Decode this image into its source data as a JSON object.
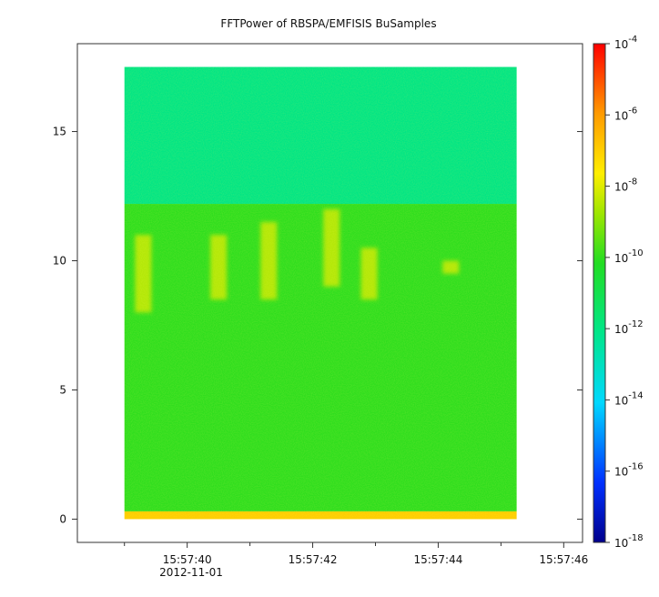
{
  "chart_data": {
    "type": "heatmap",
    "title": "FFTPower of RBSPA/EMFISIS  BuSamples",
    "x": {
      "ticks": [
        "15:57:40",
        "15:57:42",
        "15:57:44",
        "15:57:46"
      ],
      "date_label": "2012-11-01",
      "range": [
        "15:57:38.25",
        "15:57:46.3"
      ],
      "data_range": [
        "15:57:39.0",
        "15:57:45.25"
      ]
    },
    "y": {
      "ticks": [
        "0",
        "5",
        "10",
        "15"
      ],
      "range": [
        -0.9,
        18.4
      ],
      "data_range": [
        0,
        17.5
      ]
    },
    "colorbar": {
      "scale": "log",
      "range": [
        1e-18,
        0.0001
      ],
      "tick_bases": [
        "10",
        "10",
        "10",
        "10",
        "10",
        "10",
        "10",
        "10"
      ],
      "tick_exponents": [
        "-4",
        "-6",
        "-8",
        "-10",
        "-12",
        "-14",
        "-16",
        "-18"
      ],
      "colors": [
        "#0000a0",
        "#0040ff",
        "#00d0ff",
        "#00e890",
        "#10e040",
        "#90e000",
        "#ffee00",
        "#ff9000",
        "#ff0000"
      ]
    },
    "regions": [
      {
        "y_range": [
          12.2,
          17.5
        ],
        "level": 1e-12,
        "desc": "cyan-green band"
      },
      {
        "y_range": [
          0.3,
          12.2
        ],
        "level": 1e-10,
        "desc": "green band"
      },
      {
        "y_range": [
          0,
          0.3
        ],
        "level": 1e-07,
        "desc": "orange/red low-frequency line"
      }
    ],
    "bursts": [
      {
        "t": "15:57:39.3",
        "y_range": [
          8,
          11
        ],
        "level": 1e-08
      },
      {
        "t": "15:57:40.5",
        "y_range": [
          8.5,
          11
        ],
        "level": 1e-08
      },
      {
        "t": "15:57:41.3",
        "y_range": [
          8.5,
          11.5
        ],
        "level": 1e-08
      },
      {
        "t": "15:57:42.3",
        "y_range": [
          9,
          12
        ],
        "level": 1e-08
      },
      {
        "t": "15:57:42.9",
        "y_range": [
          8.5,
          10.5
        ],
        "level": 1e-08
      },
      {
        "t": "15:57:44.2",
        "y_range": [
          9.5,
          10
        ],
        "level": 1e-08
      }
    ]
  }
}
